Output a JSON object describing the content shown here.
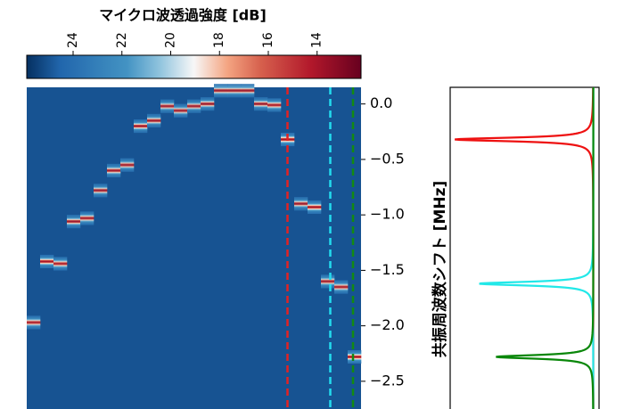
{
  "chart_data": {
    "type": "heatmap",
    "colorbar": {
      "title": "マイクロ波透過強度 [dB]",
      "lim": [
        25.9,
        12.2
      ],
      "ticks": [
        24,
        22,
        20,
        18,
        16,
        14
      ],
      "colormap": "RdBu_r"
    },
    "ylabel": "共振周波数シフト [MHz]",
    "ylim": [
      -2.75,
      0.15
    ],
    "yticks": [
      {
        "value": 0,
        "label": "0.0"
      },
      {
        "value": -0.5,
        "label": "−0.5"
      },
      {
        "value": -1.0,
        "label": "−1.0"
      },
      {
        "value": -1.5,
        "label": "−1.5"
      },
      {
        "value": -2.0,
        "label": "−2.0"
      },
      {
        "value": -2.5,
        "label": "−2.5"
      }
    ],
    "background_db": 25.0,
    "peak_db": 14.0,
    "linewidth_mhz": 0.02,
    "resonance": [
      -1.97,
      -1.42,
      -1.44,
      -1.06,
      -1.03,
      -0.78,
      -0.6,
      -0.55,
      -0.2,
      -0.15,
      -0.02,
      -0.06,
      -0.02,
      0.0,
      0.12,
      0.12,
      0.12,
      0.0,
      -0.01,
      -0.32,
      -0.9,
      -0.93,
      -1.6,
      -1.65,
      -2.28
    ],
    "cuts": [
      {
        "color": "#e32222",
        "column": 19.5
      },
      {
        "color": "#22dcee",
        "column": 22.7
      },
      {
        "color": "#138a13",
        "column": 24.4
      }
    ],
    "side_xlim": [
      12.5,
      25.5
    ],
    "baseline_db": 25.0,
    "spectra": [
      {
        "color": "#ee1111",
        "center": -0.32,
        "min_db": 12.9,
        "width": 0.02
      },
      {
        "color": "#22e8e8",
        "center": -1.62,
        "min_db": 15.0,
        "width": 0.02
      },
      {
        "color": "#0a870a",
        "center": -2.28,
        "min_db": 16.5,
        "width": 0.02
      }
    ]
  }
}
